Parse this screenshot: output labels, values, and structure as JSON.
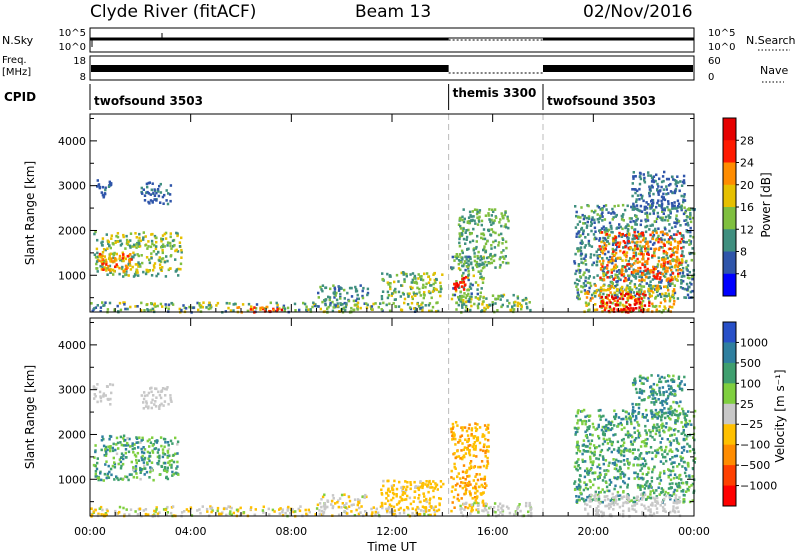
{
  "header": {
    "station": "Clyde River (fitACF)",
    "beam": "Beam 13",
    "date": "02/Nov/2016"
  },
  "panels": {
    "nsky_label": "N.Sky",
    "nsky_ticks": [
      "10^5",
      "10^0"
    ],
    "nsearch_label": "N.Search",
    "nsearch_ticks": [
      "10^5",
      "10^0"
    ],
    "freq_label_1": "Freq.",
    "freq_label_2": "[MHz]",
    "freq_ticks": [
      "18",
      "8"
    ],
    "nave_label": "Nave",
    "nave_ticks": [
      "60",
      "0"
    ],
    "cpid_label": "CPID",
    "cpid_segments": [
      {
        "name": "twofsound 3503",
        "start_h": 0,
        "end_h": 14.25
      },
      {
        "name": "themis 3300",
        "start_h": 14.25,
        "end_h": 18.0
      },
      {
        "name": "twofsound 3503",
        "start_h": 18.0,
        "end_h": 24
      }
    ]
  },
  "chart_data": [
    {
      "type": "heatmap",
      "title": "",
      "xlabel": "Time UT",
      "ylabel": "Slant Range [km]",
      "x_ticks": [
        "00:00",
        "04:00",
        "08:00",
        "12:00",
        "16:00",
        "20:00",
        "00:00"
      ],
      "xlim_hours": [
        0,
        24
      ],
      "y_ticks": [
        "1000",
        "2000",
        "3000",
        "4000"
      ],
      "ylim": [
        180,
        4600
      ],
      "colorbar_label": "Power [dB]",
      "colorbar_ticks": [
        "4",
        "8",
        "12",
        "16",
        "20",
        "24",
        "28"
      ],
      "colorbar_range": [
        0,
        32
      ],
      "colors": [
        "#0000ff",
        "#2f55aa",
        "#3f8f7f",
        "#7fbf3f",
        "#e6c000",
        "#ff8c00",
        "#ff1a00",
        "#e60000"
      ],
      "mode_boundaries_h": [
        14.25,
        18.0
      ],
      "scatter_regions": [
        {
          "t": [
            0.1,
            0.8
          ],
          "r": [
            2750,
            3150
          ],
          "v": [
            4,
            10
          ]
        },
        {
          "t": [
            0.1,
            3.6
          ],
          "r": [
            1000,
            2000
          ],
          "v": [
            8,
            20
          ]
        },
        {
          "t": [
            0.3,
            1.8
          ],
          "r": [
            1100,
            1500
          ],
          "v": [
            18,
            26
          ]
        },
        {
          "t": [
            2.0,
            3.2
          ],
          "r": [
            2600,
            3100
          ],
          "v": [
            4,
            10
          ]
        },
        {
          "t": [
            0.0,
            13.8
          ],
          "r": [
            200,
            420
          ],
          "v": [
            6,
            20
          ]
        },
        {
          "t": [
            5.8,
            7.6
          ],
          "r": [
            200,
            320
          ],
          "v": [
            20,
            29
          ]
        },
        {
          "t": [
            9.0,
            11.0
          ],
          "r": [
            350,
            800
          ],
          "v": [
            4,
            14
          ]
        },
        {
          "t": [
            11.5,
            14.0
          ],
          "r": [
            480,
            1100
          ],
          "v": [
            8,
            18
          ]
        },
        {
          "t": [
            14.3,
            15.6
          ],
          "r": [
            400,
            1500
          ],
          "v": [
            6,
            18
          ]
        },
        {
          "t": [
            14.4,
            14.9
          ],
          "r": [
            700,
            1000
          ],
          "v": [
            24,
            30
          ]
        },
        {
          "t": [
            14.6,
            16.6
          ],
          "r": [
            1200,
            2500
          ],
          "v": [
            8,
            16
          ]
        },
        {
          "t": [
            14.5,
            17.5
          ],
          "r": [
            200,
            600
          ],
          "v": [
            8,
            18
          ]
        },
        {
          "t": [
            19.2,
            24.0
          ],
          "r": [
            500,
            2600
          ],
          "v": [
            6,
            14
          ]
        },
        {
          "t": [
            20.2,
            23.5
          ],
          "r": [
            900,
            2000
          ],
          "v": [
            18,
            28
          ]
        },
        {
          "t": [
            21.5,
            23.6
          ],
          "r": [
            2400,
            3350
          ],
          "v": [
            4,
            10
          ]
        },
        {
          "t": [
            19.6,
            23.2
          ],
          "r": [
            200,
            800
          ],
          "v": [
            14,
            24
          ]
        },
        {
          "t": [
            20.2,
            22.2
          ],
          "r": [
            200,
            620
          ],
          "v": [
            26,
            32
          ]
        }
      ]
    },
    {
      "type": "heatmap",
      "title": "",
      "xlabel": "Time UT",
      "ylabel": "Slant Range [km]",
      "x_ticks": [
        "00:00",
        "04:00",
        "08:00",
        "12:00",
        "16:00",
        "20:00",
        "00:00"
      ],
      "xlim_hours": [
        0,
        24
      ],
      "y_ticks": [
        "1000",
        "2000",
        "3000",
        "4000"
      ],
      "ylim": [
        180,
        4600
      ],
      "colorbar_label": "Velocity [m s⁻¹]",
      "colorbar_ticks": [
        "1000",
        "500",
        "100",
        "25",
        "−25",
        "−100",
        "−500",
        "−1000"
      ],
      "colorbar_range": [
        -1200,
        1200
      ],
      "colors": [
        "#2850c8",
        "#2f7f9f",
        "#3f9f6f",
        "#7fcf3f",
        "#c8c8c8",
        "#ffc000",
        "#ff8c00",
        "#ff4000",
        "#ff0000"
      ],
      "mode_boundaries_h": [
        14.25,
        18.0
      ],
      "scatter_regions": [
        {
          "t": [
            0.1,
            0.9
          ],
          "r": [
            2700,
            3150
          ],
          "v": [
            -50,
            50
          ]
        },
        {
          "t": [
            0.1,
            3.5
          ],
          "r": [
            1000,
            2000
          ],
          "v": [
            100,
            900
          ]
        },
        {
          "t": [
            2.0,
            3.2
          ],
          "r": [
            2600,
            3100
          ],
          "v": [
            -20,
            20
          ]
        },
        {
          "t": [
            0.0,
            13.8
          ],
          "r": [
            200,
            420
          ],
          "v": [
            -300,
            200
          ]
        },
        {
          "t": [
            9.0,
            11.0
          ],
          "r": [
            400,
            700
          ],
          "v": [
            -300,
            200
          ]
        },
        {
          "t": [
            11.5,
            14.0
          ],
          "r": [
            300,
            1000
          ],
          "v": [
            -400,
            -100
          ]
        },
        {
          "t": [
            14.3,
            15.8
          ],
          "r": [
            300,
            2300
          ],
          "v": [
            -500,
            -200
          ]
        },
        {
          "t": [
            14.5,
            17.5
          ],
          "r": [
            200,
            500
          ],
          "v": [
            -20,
            200
          ]
        },
        {
          "t": [
            19.2,
            24.0
          ],
          "r": [
            500,
            2600
          ],
          "v": [
            200,
            800
          ]
        },
        {
          "t": [
            21.5,
            23.6
          ],
          "r": [
            2400,
            3350
          ],
          "v": [
            300,
            900
          ]
        },
        {
          "t": [
            19.6,
            23.4
          ],
          "r": [
            200,
            700
          ],
          "v": [
            -30,
            120
          ]
        }
      ]
    }
  ]
}
